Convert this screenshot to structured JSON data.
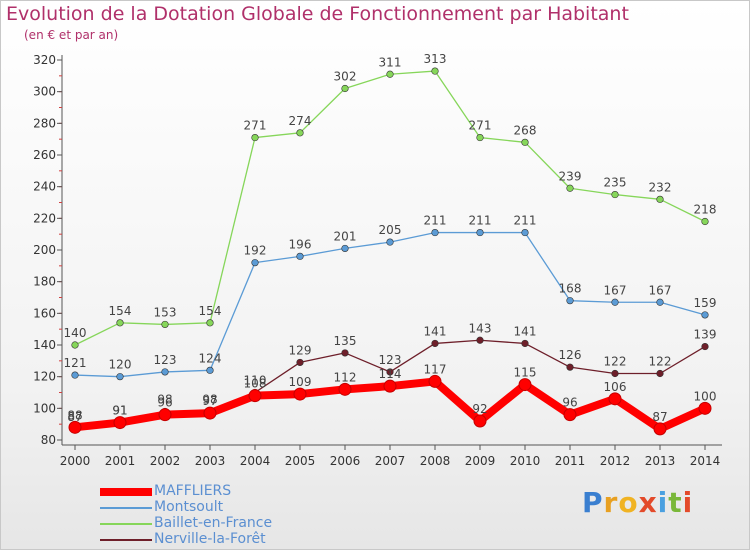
{
  "chart_data": {
    "type": "line",
    "title": "Evolution de la Dotation Globale de Fonctionnement par Habitant",
    "subtitle": "(en € et par an)",
    "x": [
      "2000",
      "2001",
      "2002",
      "2003",
      "2004",
      "2005",
      "2006",
      "2007",
      "2008",
      "2009",
      "2010",
      "2011",
      "2012",
      "2013",
      "2014"
    ],
    "ylim": [
      80,
      320
    ],
    "yticks": [
      80,
      100,
      120,
      140,
      160,
      180,
      200,
      220,
      240,
      260,
      280,
      300,
      320
    ],
    "grid": false,
    "legend_position": "bottom-left",
    "series": [
      {
        "name": "Nerville-la-Forêt",
        "color": "#6e1f2a",
        "values": [
          87,
          91,
          98,
          98,
          110,
          129,
          135,
          123,
          141,
          143,
          141,
          126,
          122,
          122,
          139
        ]
      },
      {
        "name": "Baillet-en-France",
        "color": "#86d65a",
        "values": [
          140,
          154,
          153,
          154,
          271,
          274,
          302,
          311,
          313,
          271,
          268,
          239,
          235,
          232,
          218
        ]
      },
      {
        "name": "Montsoult",
        "color": "#5b9bd5",
        "values": [
          121,
          120,
          123,
          124,
          192,
          196,
          201,
          205,
          211,
          211,
          211,
          168,
          167,
          167,
          159
        ]
      },
      {
        "name": "MAFFLIERS",
        "color": "#ff0000",
        "values": [
          88,
          91,
          96,
          97,
          108,
          109,
          112,
          114,
          117,
          92,
          115,
          96,
          106,
          87,
          100
        ]
      }
    ],
    "legend_order": [
      "MAFFLIERS",
      "Montsoult",
      "Baillet-en-France",
      "Nerville-la-Forêt"
    ]
  },
  "logo": {
    "text": "Proxiti",
    "letters": [
      {
        "ch": "P",
        "color": "#3a7fd0"
      },
      {
        "ch": "r",
        "color": "#e8a021"
      },
      {
        "ch": "o",
        "color": "#f0b323"
      },
      {
        "ch": "x",
        "color": "#e34a2a"
      },
      {
        "ch": "i",
        "color": "#4aa0e0"
      },
      {
        "ch": "t",
        "color": "#7ab83a"
      },
      {
        "ch": "i",
        "color": "#e34a2a"
      }
    ]
  }
}
